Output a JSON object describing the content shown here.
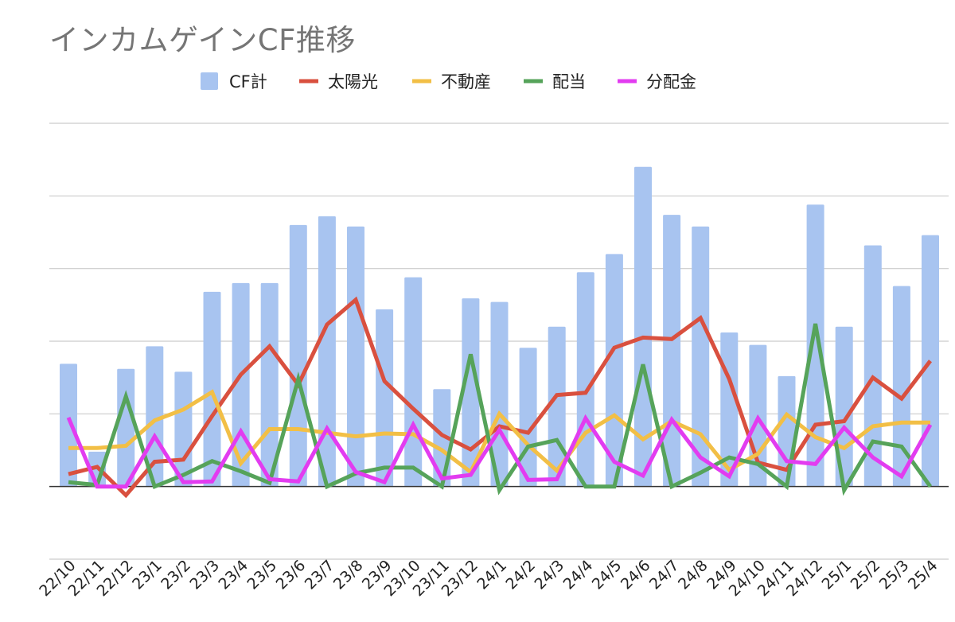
{
  "chart_data": {
    "type": "bar",
    "title": "インカムゲインCF推移",
    "categories": [
      "22/10",
      "22/11",
      "22/12",
      "23/1",
      "23/2",
      "23/3",
      "23/4",
      "23/5",
      "23/6",
      "23/7",
      "23/8",
      "23/9",
      "23/10",
      "23/11",
      "23/12",
      "24/1",
      "24/2",
      "24/3",
      "24/4",
      "24/5",
      "24/6",
      "24/7",
      "24/8",
      "24/9",
      "24/10",
      "24/11",
      "24/12",
      "25/1",
      "25/2",
      "25/3",
      "25/4"
    ],
    "y_axis_labels_shown": false,
    "ylim": [
      -100,
      500
    ],
    "grid": true,
    "legend_position": "top",
    "series": [
      {
        "name": "CF計",
        "kind": "bar",
        "color": "#a8c4f0",
        "values": [
          169,
          48,
          162,
          193,
          158,
          268,
          280,
          280,
          360,
          372,
          358,
          244,
          288,
          134,
          259,
          254,
          191,
          220,
          295,
          320,
          440,
          374,
          358,
          212,
          195,
          152,
          388,
          220,
          332,
          276,
          346
        ]
      },
      {
        "name": "太陽光",
        "kind": "line",
        "color": "#d9503f",
        "values": [
          17,
          27,
          -12,
          34,
          37,
          97,
          154,
          193,
          140,
          223,
          257,
          145,
          107,
          71,
          51,
          83,
          74,
          126,
          129,
          191,
          205,
          203,
          232,
          148,
          33,
          23,
          85,
          90,
          150,
          121,
          173
        ]
      },
      {
        "name": "不動産",
        "kind": "line",
        "color": "#f2bf46",
        "values": [
          53,
          53,
          56,
          91,
          106,
          130,
          32,
          79,
          79,
          74,
          69,
          73,
          72,
          50,
          20,
          100,
          57,
          22,
          74,
          98,
          65,
          90,
          72,
          23,
          45,
          99,
          68,
          53,
          83,
          88,
          88
        ]
      },
      {
        "name": "配当",
        "kind": "line",
        "color": "#56a35a",
        "values": [
          6,
          2,
          124,
          0,
          16,
          35,
          21,
          5,
          148,
          0,
          18,
          26,
          26,
          0,
          182,
          -5,
          55,
          64,
          0,
          0,
          168,
          0,
          19,
          40,
          31,
          0,
          224,
          -5,
          62,
          55,
          0
        ]
      },
      {
        "name": "分配金",
        "kind": "line",
        "color": "#e23cf0",
        "values": [
          95,
          0,
          0,
          69,
          6,
          7,
          76,
          10,
          7,
          80,
          20,
          6,
          85,
          11,
          16,
          78,
          9,
          10,
          94,
          34,
          15,
          92,
          40,
          14,
          94,
          35,
          31,
          81,
          40,
          14,
          85
        ]
      }
    ]
  }
}
